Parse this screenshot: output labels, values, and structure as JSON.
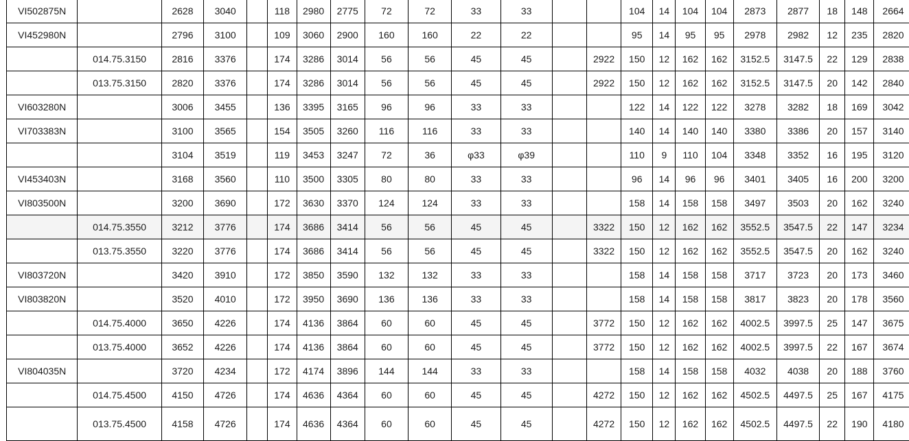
{
  "table": {
    "highlighted_row": 9,
    "rows": [
      [
        "VI502875N",
        "",
        "2628",
        "3040",
        "",
        "118",
        "2980",
        "2775",
        "72",
        "72",
        "33",
        "33",
        "",
        "",
        "104",
        "14",
        "104",
        "104",
        "2873",
        "2877",
        "18",
        "148",
        "2664"
      ],
      [
        "VI452980N",
        "",
        "2796",
        "3100",
        "",
        "109",
        "3060",
        "2900",
        "160",
        "160",
        "22",
        "22",
        "",
        "",
        "95",
        "14",
        "95",
        "95",
        "2978",
        "2982",
        "12",
        "235",
        "2820"
      ],
      [
        "",
        "014.75.3150",
        "2816",
        "3376",
        "",
        "174",
        "3286",
        "3014",
        "56",
        "56",
        "45",
        "45",
        "",
        "2922",
        "150",
        "12",
        "162",
        "162",
        "3152.5",
        "3147.5",
        "22",
        "129",
        "2838"
      ],
      [
        "",
        "013.75.3150",
        "2820",
        "3376",
        "",
        "174",
        "3286",
        "3014",
        "56",
        "56",
        "45",
        "45",
        "",
        "2922",
        "150",
        "12",
        "162",
        "162",
        "3152.5",
        "3147.5",
        "20",
        "142",
        "2840"
      ],
      [
        "VI603280N",
        "",
        "3006",
        "3455",
        "",
        "136",
        "3395",
        "3165",
        "96",
        "96",
        "33",
        "33",
        "",
        "",
        "122",
        "14",
        "122",
        "122",
        "3278",
        "3282",
        "18",
        "169",
        "3042"
      ],
      [
        "VI703383N",
        "",
        "3100",
        "3565",
        "",
        "154",
        "3505",
        "3260",
        "116",
        "116",
        "33",
        "33",
        "",
        "",
        "140",
        "14",
        "140",
        "140",
        "3380",
        "3386",
        "20",
        "157",
        "3140"
      ],
      [
        "",
        "",
        "3104",
        "3519",
        "",
        "119",
        "3453",
        "3247",
        "72",
        "36",
        "φ33",
        "φ39",
        "",
        "",
        "110",
        "9",
        "110",
        "104",
        "3348",
        "3352",
        "16",
        "195",
        "3120"
      ],
      [
        "VI453403N",
        "",
        "3168",
        "3560",
        "",
        "110",
        "3500",
        "3305",
        "80",
        "80",
        "33",
        "33",
        "",
        "",
        "96",
        "14",
        "96",
        "96",
        "3401",
        "3405",
        "16",
        "200",
        "3200"
      ],
      [
        "VI803500N",
        "",
        "3200",
        "3690",
        "",
        "172",
        "3630",
        "3370",
        "124",
        "124",
        "33",
        "33",
        "",
        "",
        "158",
        "14",
        "158",
        "158",
        "3497",
        "3503",
        "20",
        "162",
        "3240"
      ],
      [
        "",
        "014.75.3550",
        "3212",
        "3776",
        "",
        "174",
        "3686",
        "3414",
        "56",
        "56",
        "45",
        "45",
        "",
        "3322",
        "150",
        "12",
        "162",
        "162",
        "3552.5",
        "3547.5",
        "22",
        "147",
        "3234"
      ],
      [
        "",
        "013.75.3550",
        "3220",
        "3776",
        "",
        "174",
        "3686",
        "3414",
        "56",
        "56",
        "45",
        "45",
        "",
        "3322",
        "150",
        "12",
        "162",
        "162",
        "3552.5",
        "3547.5",
        "20",
        "162",
        "3240"
      ],
      [
        "VI803720N",
        "",
        "3420",
        "3910",
        "",
        "172",
        "3850",
        "3590",
        "132",
        "132",
        "33",
        "33",
        "",
        "",
        "158",
        "14",
        "158",
        "158",
        "3717",
        "3723",
        "20",
        "173",
        "3460"
      ],
      [
        "VI803820N",
        "",
        "3520",
        "4010",
        "",
        "172",
        "3950",
        "3690",
        "136",
        "136",
        "33",
        "33",
        "",
        "",
        "158",
        "14",
        "158",
        "158",
        "3817",
        "3823",
        "20",
        "178",
        "3560"
      ],
      [
        "",
        "014.75.4000",
        "3650",
        "4226",
        "",
        "174",
        "4136",
        "3864",
        "60",
        "60",
        "45",
        "45",
        "",
        "3772",
        "150",
        "12",
        "162",
        "162",
        "4002.5",
        "3997.5",
        "25",
        "147",
        "3675"
      ],
      [
        "",
        "013.75.4000",
        "3652",
        "4226",
        "",
        "174",
        "4136",
        "3864",
        "60",
        "60",
        "45",
        "45",
        "",
        "3772",
        "150",
        "12",
        "162",
        "162",
        "4002.5",
        "3997.5",
        "22",
        "167",
        "3674"
      ],
      [
        "VI804035N",
        "",
        "3720",
        "4234",
        "",
        "172",
        "4174",
        "3896",
        "144",
        "144",
        "33",
        "33",
        "",
        "",
        "158",
        "14",
        "158",
        "158",
        "4032",
        "4038",
        "20",
        "188",
        "3760"
      ],
      [
        "",
        "014.75.4500",
        "4150",
        "4726",
        "",
        "174",
        "4636",
        "4364",
        "60",
        "60",
        "45",
        "45",
        "",
        "4272",
        "150",
        "12",
        "162",
        "162",
        "4502.5",
        "4497.5",
        "25",
        "167",
        "4175"
      ],
      [
        "",
        "013.75.4500",
        "4158",
        "4726",
        "",
        "174",
        "4636",
        "4364",
        "60",
        "60",
        "45",
        "45",
        "",
        "4272",
        "150",
        "12",
        "162",
        "162",
        "4502.5",
        "4497.5",
        "22",
        "190",
        "4180"
      ]
    ]
  }
}
